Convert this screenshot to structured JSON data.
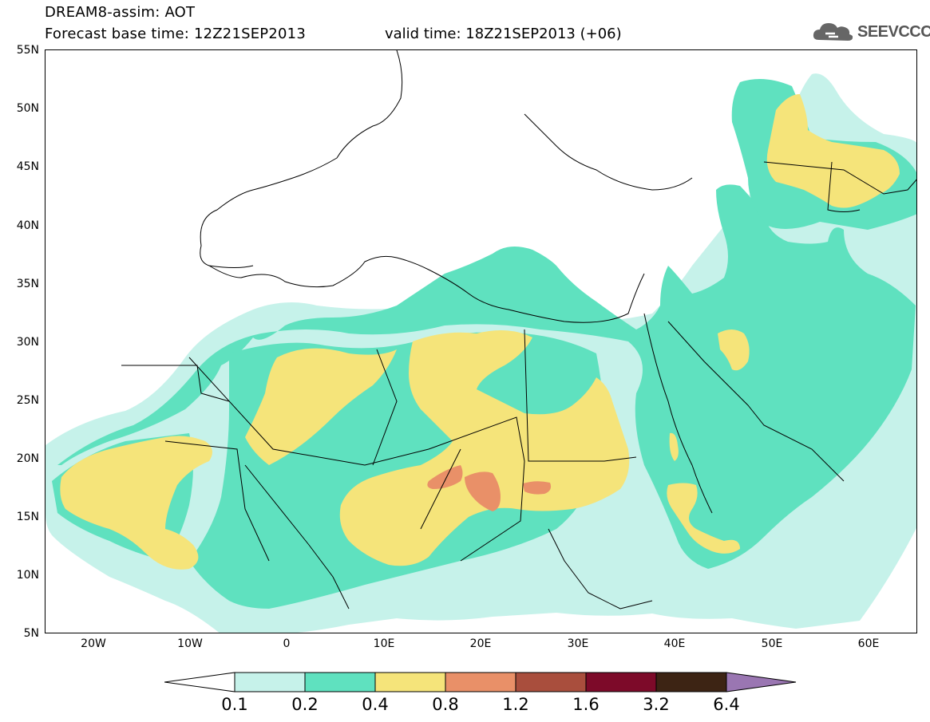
{
  "header": {
    "title": "DREAM8-assim: AOT",
    "base_time": "Forecast base time: 12Z21SEP2013",
    "valid_time": "valid time: 18Z21SEP2013 (+06)",
    "logo_text": "SEEVCCC",
    "logo_icon": "cloud-icon"
  },
  "map": {
    "lat_labels": [
      "55N",
      "50N",
      "45N",
      "40N",
      "35N",
      "30N",
      "25N",
      "20N",
      "15N",
      "10N",
      "5N"
    ],
    "lon_labels": [
      "20W",
      "10W",
      "0",
      "10E",
      "20E",
      "30E",
      "40E",
      "50E",
      "60E"
    ],
    "lat_range": [
      5,
      55
    ],
    "lon_range": [
      -25,
      65
    ]
  },
  "colorbar": {
    "labels": [
      "0.1",
      "0.2",
      "0.4",
      "0.8",
      "1.2",
      "1.6",
      "3.2",
      "6.4"
    ],
    "colors": [
      "#ffffff",
      "#c6f2ea",
      "#5fe1bf",
      "#f5e47a",
      "#e99068",
      "#a94e3d",
      "#7d0a29",
      "#3d2414",
      "#9a76b2"
    ]
  }
}
